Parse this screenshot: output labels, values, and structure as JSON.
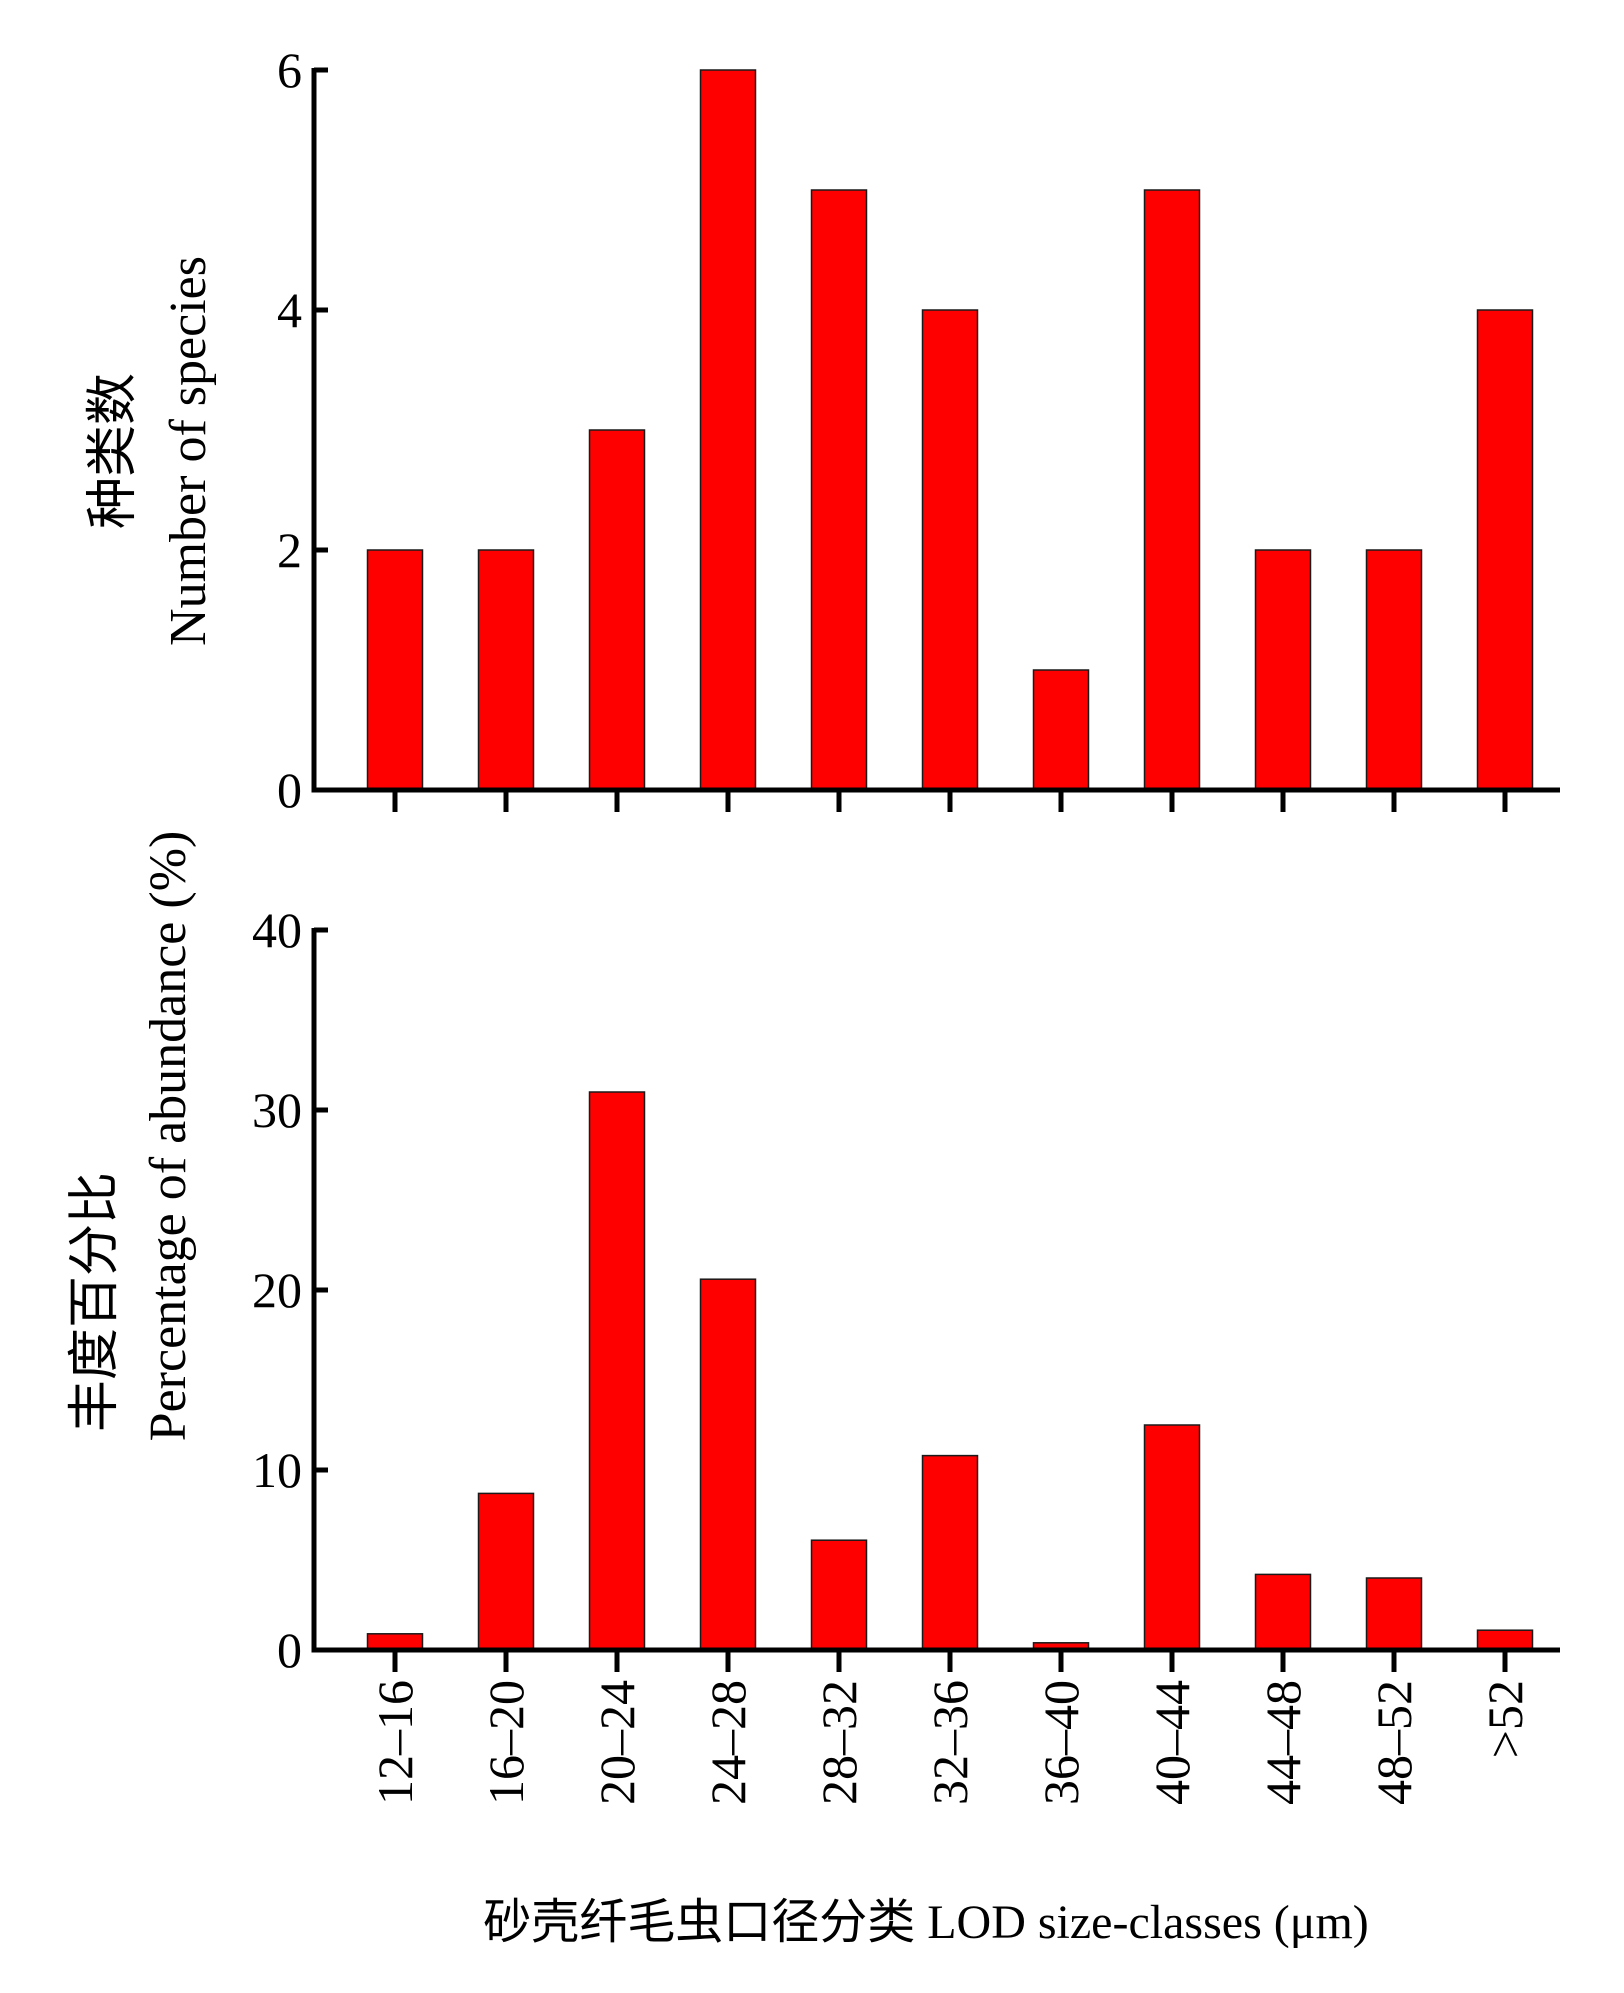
{
  "colors": {
    "bar": "#ff0000",
    "axis": "#000000"
  },
  "chart_data": [
    {
      "type": "bar",
      "ylabel_cn": "种类数",
      "ylabel_en": "Number of species",
      "ylim": [
        0,
        6
      ],
      "yticks": [
        0,
        2,
        4,
        6
      ],
      "ytick_labels": [
        "0",
        "2",
        "4",
        "6"
      ],
      "categories": [
        "12–16",
        "16–20",
        "20–24",
        "24–28",
        "28–32",
        "32–36",
        "36–40",
        "40–44",
        "44–48",
        "48–52",
        ">52"
      ],
      "values": [
        2,
        2,
        3,
        6,
        5,
        4,
        1,
        5,
        2,
        2,
        4
      ],
      "show_category_labels": false,
      "grid": false
    },
    {
      "type": "bar",
      "ylabel_cn": "丰度百分比",
      "ylabel_en": "Percentage of abundance (%)",
      "ylim": [
        0,
        40
      ],
      "yticks": [
        0,
        10,
        20,
        30,
        40
      ],
      "ytick_labels": [
        "0",
        "10",
        "20",
        "30",
        "40"
      ],
      "categories": [
        "12–16",
        "16–20",
        "20–24",
        "24–28",
        "28–32",
        "32–36",
        "36–40",
        "40–44",
        "44–48",
        "48–52",
        ">52"
      ],
      "values": [
        0.9,
        8.7,
        31.0,
        20.6,
        6.1,
        10.8,
        0.4,
        12.5,
        4.2,
        4.0,
        1.1
      ],
      "show_category_labels": true,
      "grid": false
    }
  ],
  "xlabel": "砂壳纤毛虫口径分类 LOD size-classes (μm)"
}
